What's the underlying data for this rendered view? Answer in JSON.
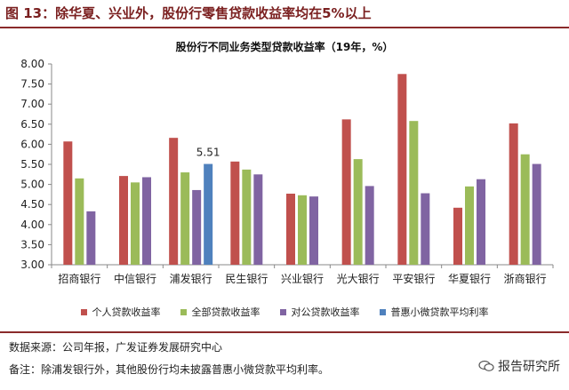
{
  "figure": {
    "title": "图 13：除华夏、兴业外，股份行零售贷款收益率均在5%以上",
    "source": "数据来源：公司年报，广发证券发展研究中心",
    "note": "备注：除浦发银行外，其他股份行均未披露普惠小微贷款平均利率。",
    "watermark": "报告研究所"
  },
  "chart_data": {
    "type": "bar",
    "title": "股份行不同业务类型贷款收益率（19年，%）",
    "xlabel": "",
    "ylabel": "",
    "ylim": [
      3.0,
      8.0
    ],
    "yticks": [
      "8.00",
      "7.50",
      "7.00",
      "6.50",
      "6.00",
      "5.50",
      "5.00",
      "4.50",
      "4.00",
      "3.50",
      "3.00"
    ],
    "grid": false,
    "legend_position": "bottom",
    "categories": [
      "招商银行",
      "中信银行",
      "浦发银行",
      "民生银行",
      "兴业银行",
      "光大银行",
      "平安银行",
      "华夏银行",
      "浙商银行"
    ],
    "series": [
      {
        "name": "个人贷款收益率",
        "color": "#c0504d",
        "values": [
          6.07,
          5.21,
          6.16,
          5.57,
          4.77,
          6.62,
          7.75,
          4.42,
          6.52
        ]
      },
      {
        "name": "全部贷款收益率",
        "color": "#9bbb59",
        "values": [
          5.15,
          5.05,
          5.3,
          5.37,
          4.73,
          5.63,
          6.58,
          4.95,
          5.75
        ]
      },
      {
        "name": "对公贷款收益率",
        "color": "#8064a2",
        "values": [
          4.33,
          5.18,
          4.86,
          5.25,
          4.7,
          4.96,
          4.78,
          5.13,
          5.51
        ]
      },
      {
        "name": "普惠小微贷款平均利率",
        "color": "#4f81bd",
        "values": [
          null,
          null,
          5.51,
          null,
          null,
          null,
          null,
          null,
          null
        ]
      }
    ],
    "annotations": [
      {
        "category": "浦发银行",
        "series": "普惠小微贷款平均利率",
        "text": "5.51"
      }
    ]
  }
}
